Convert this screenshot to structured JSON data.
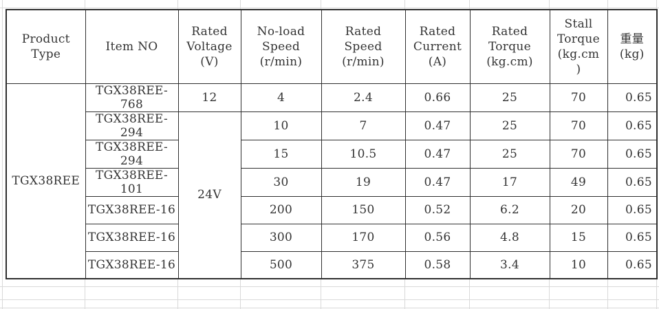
{
  "spreadsheet": {
    "table": {
      "headers": [
        "Product\nType",
        "Item NO",
        "Rated\nVoltage\n(V)",
        "No-load\nSpeed\n(r/min)",
        "Rated\nSpeed\n(r/min)",
        "Rated\nCurrent\n(A)",
        "Rated\nTorque\n(kg.cm)",
        "Stall\nTorque\n(kg.cm\n)",
        "重量\n(kg)"
      ],
      "product_type": "TGX38REE",
      "merged_rated_voltage": "24V",
      "rows": [
        {
          "item_no": "TGX38REE-768",
          "rated_voltage": "12",
          "no_load_speed": "4",
          "rated_speed": "2.4",
          "rated_current": "0.66",
          "rated_torque": "25",
          "stall_torque": "70",
          "weight": "0.65"
        },
        {
          "item_no": "TGX38REE-294",
          "no_load_speed": "10",
          "rated_speed": "7",
          "rated_current": "0.47",
          "rated_torque": "25",
          "stall_torque": "70",
          "weight": "0.65"
        },
        {
          "item_no": "TGX38REE-294",
          "no_load_speed": "15",
          "rated_speed": "10.5",
          "rated_current": "0.47",
          "rated_torque": "25",
          "stall_torque": "70",
          "weight": "0.65"
        },
        {
          "item_no": "TGX38REE-101",
          "no_load_speed": "30",
          "rated_speed": "19",
          "rated_current": "0.47",
          "rated_torque": "17",
          "stall_torque": "49",
          "weight": "0.65"
        },
        {
          "item_no": "TGX38REE-16",
          "no_load_speed": "200",
          "rated_speed": "150",
          "rated_current": "0.52",
          "rated_torque": "6.2",
          "stall_torque": "20",
          "weight": "0.65"
        },
        {
          "item_no": "TGX38REE-16",
          "no_load_speed": "300",
          "rated_speed": "170",
          "rated_current": "0.56",
          "rated_torque": "4.8",
          "stall_torque": "15",
          "weight": "0.65"
        },
        {
          "item_no": "TGX38REE-16",
          "no_load_speed": "500",
          "rated_speed": "375",
          "rated_current": "0.58",
          "rated_torque": "3.4",
          "stall_torque": "10",
          "weight": "0.65"
        }
      ]
    }
  }
}
